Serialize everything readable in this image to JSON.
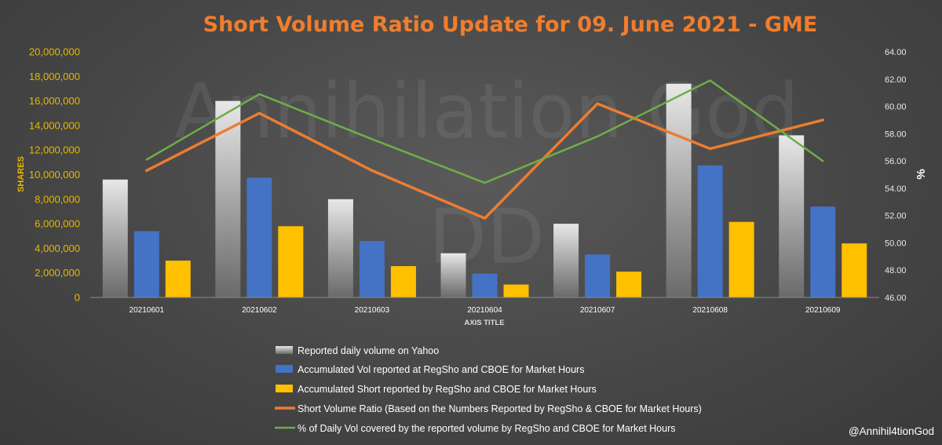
{
  "watermark": {
    "line1": "Annihilation God",
    "line2": "DD",
    "credit": "@Annihil4tionGod"
  },
  "colors": {
    "title": "#f07d2d",
    "yahoo": "#a6a6a6",
    "accum_vol": "#4472c4",
    "accum_short": "#ffc000",
    "svr": "#ed7d31",
    "pct": "#70ad47",
    "left_axis": "#e6b800"
  },
  "chart_data": {
    "type": "bar",
    "title": "Short Volume Ratio Update for 09. June 2021 - GME",
    "xlabel": "AXIS TITLE",
    "ylabel": "SHARES",
    "y2label": "%",
    "categories": [
      "20210601",
      "20210602",
      "20210603",
      "20210604",
      "20210607",
      "20210608",
      "20210609"
    ],
    "ylim": [
      0,
      20000000
    ],
    "y_ticks": [
      "0",
      "2,000,000",
      "4,000,000",
      "6,000,000",
      "8,000,000",
      "10,000,000",
      "12,000,000",
      "14,000,000",
      "16,000,000",
      "18,000,000",
      "20,000,000"
    ],
    "y2lim": [
      46,
      64
    ],
    "y2_ticks": [
      "46.00",
      "48.00",
      "50.00",
      "52.00",
      "54.00",
      "56.00",
      "58.00",
      "60.00",
      "62.00",
      "64.00"
    ],
    "series": [
      {
        "name": "Reported daily volume on Yahoo",
        "type": "bar",
        "axis": "left",
        "values": [
          9600000,
          16000000,
          8000000,
          3600000,
          6000000,
          17400000,
          13200000
        ]
      },
      {
        "name": "Accumulated Vol reported at RegSho and CBOE for Market Hours",
        "type": "bar",
        "axis": "left",
        "values": [
          5400000,
          9750000,
          4600000,
          1950000,
          3500000,
          10750000,
          7400000
        ]
      },
      {
        "name": "Accumulated Short reported by RegSho and CBOE for Market Hours",
        "type": "bar",
        "axis": "left",
        "values": [
          3000000,
          5800000,
          2550000,
          1050000,
          2100000,
          6150000,
          4400000
        ]
      },
      {
        "name": "Short Volume Ratio (Based on the Numbers Reported by RegSho & CBOE for Market Hours)",
        "type": "line",
        "axis": "right",
        "values": [
          55.3,
          59.5,
          55.3,
          51.8,
          60.2,
          56.9,
          59.0
        ]
      },
      {
        "name": "% of Daily Vol covered by the reported volume by RegSho and CBOE  for Market Hours",
        "type": "line",
        "axis": "right",
        "values": [
          56.1,
          60.9,
          57.6,
          54.4,
          57.8,
          61.9,
          56.0
        ]
      }
    ],
    "grid": false,
    "legend_position": "bottom-center"
  }
}
